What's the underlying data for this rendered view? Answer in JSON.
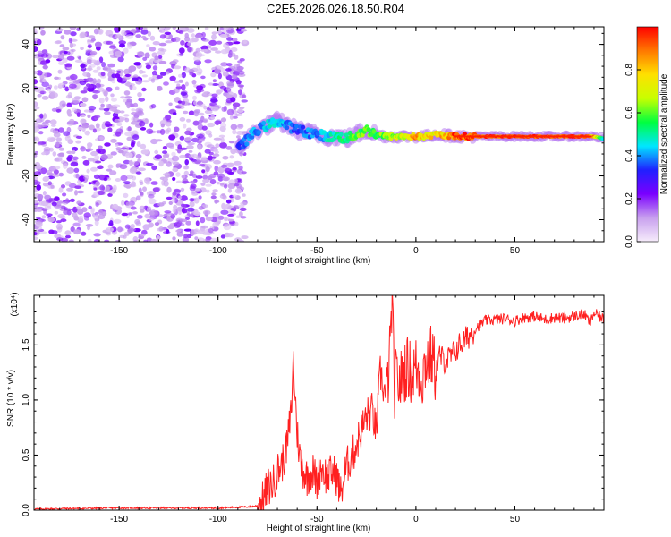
{
  "title": "C2E5.2026.026.18.50.R04",
  "chart_data": [
    {
      "type": "heatmap",
      "name": "spectrogram",
      "xlabel": "Height of straight line (km)",
      "ylabel": "Frequency (Hz)",
      "xlim": [
        -193,
        95
      ],
      "ylim": [
        -50,
        48
      ],
      "xticks": [
        -150,
        -100,
        -50,
        0,
        50
      ],
      "yticks": [
        -40,
        -20,
        0,
        20,
        40
      ],
      "colorbar": {
        "label": "Normalized spectral amplitude",
        "range": [
          0,
          1
        ],
        "ticks": [
          "0.0",
          "0.2",
          "0.4",
          "0.6",
          "0.8"
        ],
        "colors": [
          "#f6ecfb",
          "#c8a0ee",
          "#7a00ff",
          "#2020ff",
          "#00e6ff",
          "#00ff40",
          "#c8ff00",
          "#ffe000",
          "#ff7800",
          "#ff0000"
        ]
      },
      "noise_region_x": [
        -193,
        -89
      ],
      "ridge": {
        "x": [
          -90,
          -85,
          -80,
          -75,
          -70,
          -65,
          -60,
          -55,
          -50,
          -45,
          -40,
          -35,
          -30,
          -25,
          -20,
          -15,
          -10,
          -5,
          0,
          5,
          10,
          20,
          30,
          40,
          50,
          60,
          70,
          80,
          90,
          95
        ],
        "freq": [
          -8,
          -3,
          1,
          3,
          5,
          3,
          1,
          0,
          -1,
          -2,
          -2,
          -3,
          -1,
          1,
          -1,
          -2,
          -2,
          -2,
          -2,
          -2,
          -1,
          -2,
          -2,
          -2,
          -2,
          -2,
          -2,
          -2,
          -2,
          -3
        ],
        "amplitude": [
          0.35,
          0.4,
          0.4,
          0.45,
          0.45,
          0.4,
          0.35,
          0.4,
          0.4,
          0.45,
          0.5,
          0.55,
          0.6,
          0.6,
          0.6,
          0.65,
          0.7,
          0.75,
          0.85,
          0.8,
          0.75,
          0.95,
          0.95,
          0.95,
          0.95,
          0.95,
          0.95,
          0.95,
          0.85,
          0.45
        ]
      }
    },
    {
      "type": "line",
      "name": "snr",
      "xlabel": "Height of straight line (km)",
      "ylabel": "SNR (10 * v/v)",
      "y_multiplier": "(x10⁴)",
      "xlim": [
        -193,
        95
      ],
      "ylim": [
        0,
        1.95
      ],
      "xticks": [
        -150,
        -100,
        -50,
        0,
        50
      ],
      "yticks": [
        "0.0",
        "0.5",
        "1.0",
        "1.5"
      ],
      "line_color": "#ff2020",
      "x": [
        -193,
        -150,
        -100,
        -85,
        -80,
        -77,
        -75,
        -72,
        -70,
        -67,
        -65,
        -63,
        -62,
        -60,
        -58,
        -55,
        -52,
        -50,
        -48,
        -45,
        -42,
        -40,
        -38,
        -35,
        -32,
        -30,
        -28,
        -25,
        -22,
        -20,
        -18,
        -15,
        -13,
        -12,
        -11,
        -10,
        -8,
        -5,
        -2,
        0,
        3,
        5,
        8,
        10,
        12,
        15,
        18,
        20,
        22,
        25,
        28,
        30,
        35,
        40,
        45,
        50,
        55,
        60,
        65,
        70,
        75,
        80,
        85,
        88,
        90,
        95
      ],
      "y": [
        0.01,
        0.02,
        0.02,
        0.03,
        0.04,
        0.1,
        0.2,
        0.25,
        0.35,
        0.45,
        0.6,
        0.9,
        1.35,
        0.7,
        0.4,
        0.3,
        0.35,
        0.25,
        0.4,
        0.3,
        0.35,
        0.3,
        0.15,
        0.4,
        0.5,
        0.6,
        0.7,
        0.85,
        0.9,
        0.7,
        1.25,
        1.0,
        1.45,
        1.95,
        1.1,
        1.2,
        1.15,
        1.3,
        1.25,
        1.3,
        1.2,
        1.35,
        1.4,
        1.25,
        1.4,
        1.35,
        1.4,
        1.45,
        1.5,
        1.55,
        1.6,
        1.65,
        1.72,
        1.73,
        1.74,
        1.72,
        1.75,
        1.76,
        1.73,
        1.75,
        1.74,
        1.76,
        1.78,
        1.7,
        1.79,
        1.73
      ]
    }
  ]
}
